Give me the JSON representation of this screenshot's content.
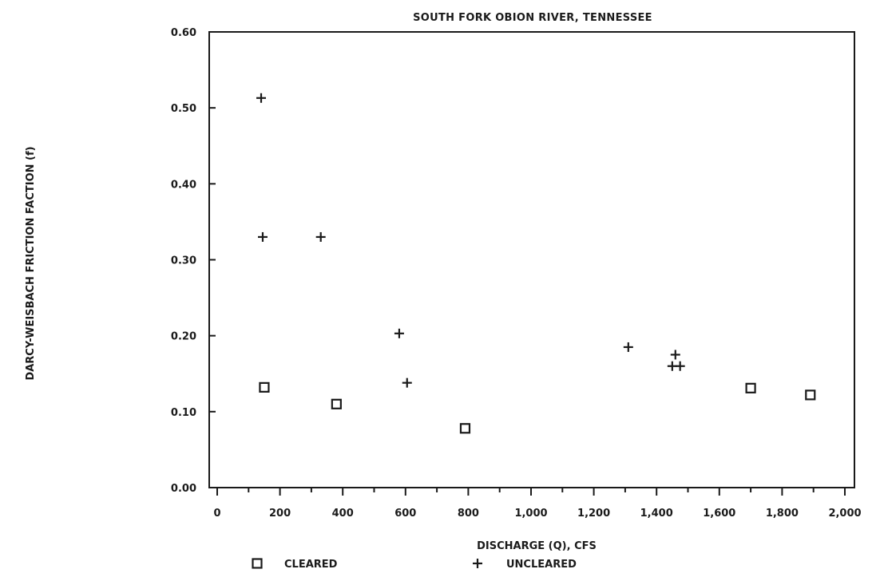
{
  "chart_data": {
    "type": "scatter",
    "title": "SOUTH FORK OBION RIVER, TENNESSEE",
    "xlabel": "DISCHARGE (Q), CFS",
    "ylabel": "DARCY-WEISBACH FRICTION FACTION (f)",
    "xlim": [
      0,
      2000
    ],
    "ylim": [
      0,
      0.6
    ],
    "x_ticks": [
      0,
      200,
      400,
      600,
      800,
      1000,
      1200,
      1400,
      1600,
      1800,
      2000
    ],
    "x_tick_labels": [
      "0",
      "200",
      "400",
      "600",
      "800",
      "1,000",
      "1,200",
      "1,400",
      "1,600",
      "1,800",
      "2,000"
    ],
    "x_minor_step": 100,
    "y_ticks": [
      0,
      0.1,
      0.2,
      0.3,
      0.4,
      0.5,
      0.6
    ],
    "y_tick_labels": [
      "0.00",
      "0.10",
      "0.20",
      "0.30",
      "0.40",
      "0.50",
      "0.60"
    ],
    "grid": false,
    "legend_position": "bottom",
    "series": [
      {
        "name": "CLEARED",
        "marker": "square",
        "color": "#1a1a1a",
        "points": [
          [
            150,
            0.132
          ],
          [
            380,
            0.11
          ],
          [
            790,
            0.078
          ],
          [
            1700,
            0.131
          ],
          [
            1890,
            0.122
          ]
        ]
      },
      {
        "name": "UNCLEARED",
        "marker": "plus",
        "color": "#1a1a1a",
        "points": [
          [
            140,
            0.513
          ],
          [
            145,
            0.33
          ],
          [
            330,
            0.33
          ],
          [
            580,
            0.203
          ],
          [
            605,
            0.138
          ],
          [
            1310,
            0.185
          ],
          [
            1460,
            0.175
          ],
          [
            1450,
            0.16
          ],
          [
            1475,
            0.16
          ]
        ]
      }
    ]
  }
}
